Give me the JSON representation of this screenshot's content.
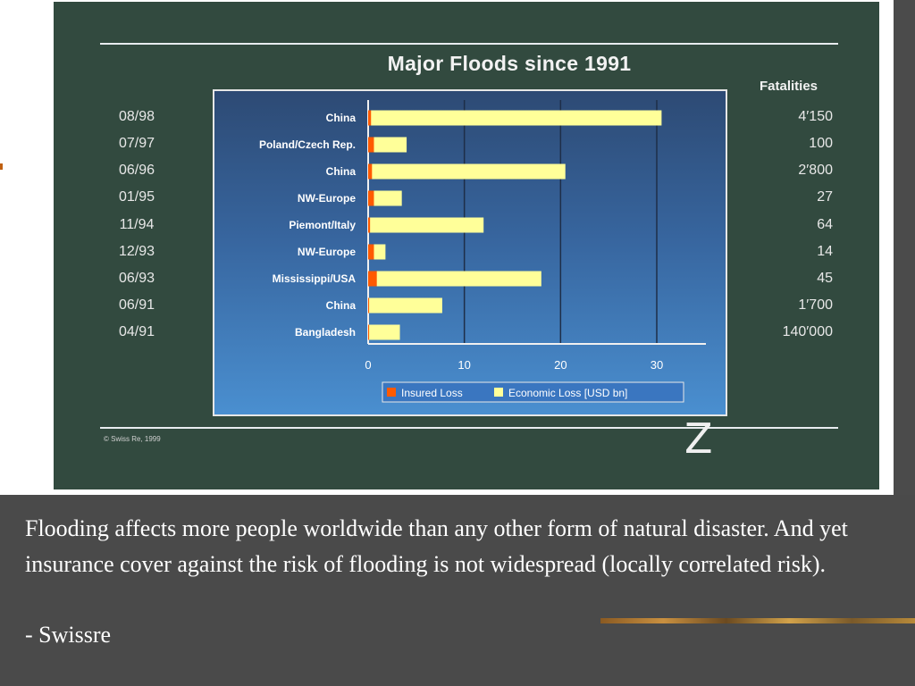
{
  "chart_data": {
    "type": "bar",
    "title": "Major Floods since 1991",
    "categories": [
      "China",
      "Poland/Czech Rep.",
      "China",
      "NW-Europe",
      "Piemont/Italy",
      "NW-Europe",
      "Mississippi/USA",
      "China",
      "Bangladesh"
    ],
    "dates": [
      "08/98",
      "07/97",
      "06/96",
      "01/95",
      "11/94",
      "12/93",
      "06/93",
      "06/91",
      "04/91"
    ],
    "fatalities_header": "Fatalities",
    "fatalities": [
      "4′150",
      "100",
      "2′800",
      "27",
      "64",
      "14",
      "45",
      "1′700",
      "140′000"
    ],
    "series": [
      {
        "name": "Insured Loss",
        "values": [
          0.3,
          0.6,
          0.4,
          0.6,
          0.2,
          0.6,
          0.9,
          0.1,
          0.1
        ],
        "color": "#ff5a00"
      },
      {
        "name": "Economic Loss [USD bn]",
        "values": [
          30.5,
          4.0,
          20.5,
          3.5,
          12.0,
          1.8,
          18.0,
          7.7,
          3.3
        ],
        "color": "#ffff99"
      }
    ],
    "stacked": false,
    "xlim": [
      0,
      35
    ],
    "xticks": [
      0,
      10,
      20,
      30
    ],
    "legend_position": "bottom-center",
    "orientation": "horizontal"
  },
  "credit": "© Swiss Re, 1999",
  "logo_text": "Z",
  "caption": "Flooding affects more people worldwide than any other form of natural disaster. And yet insurance cover against the risk of flooding is not widespread (locally correlated risk).",
  "caption_source": "- Swissre"
}
